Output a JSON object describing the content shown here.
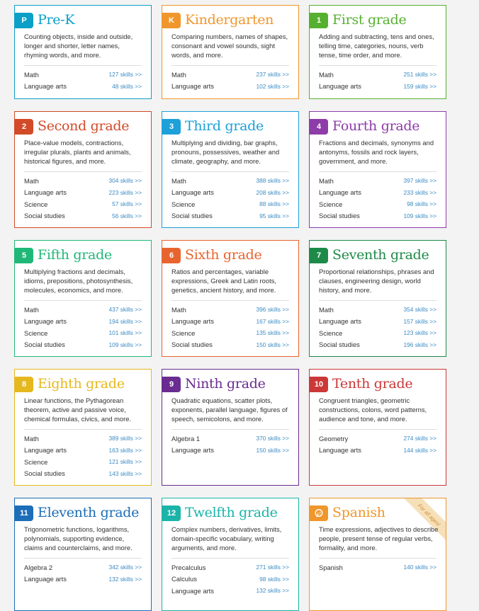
{
  "cards": [
    {
      "badge": "P",
      "title": "Pre-K",
      "color": "#0aa0c8",
      "desc": "Counting objects, inside and outside, longer and shorter, letter names, rhyming words, and more.",
      "subjects": [
        {
          "name": "Math",
          "skills": "127 skills >>"
        },
        {
          "name": "Language arts",
          "skills": "48 skills >>"
        }
      ]
    },
    {
      "badge": "K",
      "title": "Kindergarten",
      "color": "#f0962a",
      "desc": "Comparing numbers, names of shapes, consonant and vowel sounds, sight words, and more.",
      "subjects": [
        {
          "name": "Math",
          "skills": "237 skills >>"
        },
        {
          "name": "Language arts",
          "skills": "102 skills >>"
        }
      ]
    },
    {
      "badge": "1",
      "title": "First grade",
      "color": "#56b030",
      "desc": "Adding and subtracting, tens and ones, telling time, categories, nouns, verb tense, time order, and more.",
      "subjects": [
        {
          "name": "Math",
          "skills": "251 skills >>"
        },
        {
          "name": "Language arts",
          "skills": "159 skills >>"
        }
      ]
    },
    {
      "badge": "2",
      "title": "Second grade",
      "color": "#d24a28",
      "desc": "Place-value models, contractions, irregular plurals, plants and animals, historical figures, and more.",
      "subjects": [
        {
          "name": "Math",
          "skills": "304 skills >>"
        },
        {
          "name": "Language arts",
          "skills": "223 skills >>"
        },
        {
          "name": "Science",
          "skills": "57 skills >>"
        },
        {
          "name": "Social studies",
          "skills": "56 skills >>"
        }
      ]
    },
    {
      "badge": "3",
      "title": "Third grade",
      "color": "#1ea0d8",
      "desc": "Multiplying and dividing, bar graphs, pronouns, possessives, weather and climate, geography, and more.",
      "subjects": [
        {
          "name": "Math",
          "skills": "388 skills >>"
        },
        {
          "name": "Language arts",
          "skills": "208 skills >>"
        },
        {
          "name": "Science",
          "skills": "88 skills >>"
        },
        {
          "name": "Social studies",
          "skills": "95 skills >>"
        }
      ]
    },
    {
      "badge": "4",
      "title": "Fourth grade",
      "color": "#8e3ca8",
      "desc": "Fractions and decimals, synonyms and antonyms, fossils and rock layers, government, and more.",
      "subjects": [
        {
          "name": "Math",
          "skills": "397 skills >>"
        },
        {
          "name": "Language arts",
          "skills": "233 skills >>"
        },
        {
          "name": "Science",
          "skills": "98 skills >>"
        },
        {
          "name": "Social studies",
          "skills": "109 skills >>"
        }
      ]
    },
    {
      "badge": "5",
      "title": "Fifth grade",
      "color": "#1fb878",
      "desc": "Multiplying fractions and decimals, idioms, prepositions, photosynthesis, molecules, economics, and more.",
      "subjects": [
        {
          "name": "Math",
          "skills": "437 skills >>"
        },
        {
          "name": "Language arts",
          "skills": "194 skills >>"
        },
        {
          "name": "Science",
          "skills": "101 skills >>"
        },
        {
          "name": "Social studies",
          "skills": "109 skills >>"
        }
      ]
    },
    {
      "badge": "6",
      "title": "Sixth grade",
      "color": "#e8642e",
      "desc": "Ratios and percentages, variable expressions, Greek and Latin roots, genetics, ancient history, and more.",
      "subjects": [
        {
          "name": "Math",
          "skills": "396 skills >>"
        },
        {
          "name": "Language arts",
          "skills": "167 skills >>"
        },
        {
          "name": "Science",
          "skills": "135 skills >>"
        },
        {
          "name": "Social studies",
          "skills": "150 skills >>"
        }
      ]
    },
    {
      "badge": "7",
      "title": "Seventh grade",
      "color": "#1e8a48",
      "desc": "Proportional relationships, phrases and clauses, engineering design, world history, and more.",
      "subjects": [
        {
          "name": "Math",
          "skills": "354 skills >>"
        },
        {
          "name": "Language arts",
          "skills": "157 skills >>"
        },
        {
          "name": "Science",
          "skills": "123 skills >>"
        },
        {
          "name": "Social studies",
          "skills": "196 skills >>"
        }
      ]
    },
    {
      "badge": "8",
      "title": "Eighth grade",
      "color": "#e6b820",
      "desc": "Linear functions, the Pythagorean theorem, active and passive voice, chemical formulas, civics, and more.",
      "subjects": [
        {
          "name": "Math",
          "skills": "389 skills >>"
        },
        {
          "name": "Language arts",
          "skills": "163 skills >>"
        },
        {
          "name": "Science",
          "skills": "121 skills >>"
        },
        {
          "name": "Social studies",
          "skills": "143 skills >>"
        }
      ]
    },
    {
      "badge": "9",
      "title": "Ninth grade",
      "color": "#6a2c90",
      "desc": "Quadratic equations, scatter plots, exponents, parallel language, figures of speech, semicolons, and more.",
      "subjects": [
        {
          "name": "Algebra 1",
          "skills": "370 skills >>"
        },
        {
          "name": "Language arts",
          "skills": "150 skills >>"
        }
      ]
    },
    {
      "badge": "10",
      "title": "Tenth grade",
      "color": "#cc3838",
      "desc": "Congruent triangles, geometric constructions, colons, word patterns, audience and tone, and more.",
      "subjects": [
        {
          "name": "Geometry",
          "skills": "274 skills >>"
        },
        {
          "name": "Language arts",
          "skills": "144 skills >>"
        }
      ]
    },
    {
      "badge": "11",
      "title": "Eleventh grade",
      "color": "#1c6eb8",
      "desc": "Trigonometric functions, logarithms, polynomials, supporting evidence, claims and counterclaims, and more.",
      "subjects": [
        {
          "name": "Algebra 2",
          "skills": "342 skills >>"
        },
        {
          "name": "Language arts",
          "skills": "132 skills >>"
        }
      ]
    },
    {
      "badge": "12",
      "title": "Twelfth grade",
      "color": "#1ab4a8",
      "desc": "Complex numbers, derivatives, limits, domain-specific vocabulary, writing arguments, and more.",
      "subjects": [
        {
          "name": "Precalculus",
          "skills": "271 skills >>"
        },
        {
          "name": "Calculus",
          "skills": "98 skills >>"
        },
        {
          "name": "Language arts",
          "skills": "132 skills >>"
        }
      ]
    },
    {
      "badge": "",
      "badge_icon": "speech-bubble-icon",
      "title": "Spanish",
      "color": "#f0962a",
      "ribbon": "For all ages!",
      "desc": "Time expressions, adjectives to describe people, present tense of regular verbs, formality, and more.",
      "subjects": [
        {
          "name": "Spanish",
          "skills": "140 skills >>"
        }
      ]
    }
  ]
}
